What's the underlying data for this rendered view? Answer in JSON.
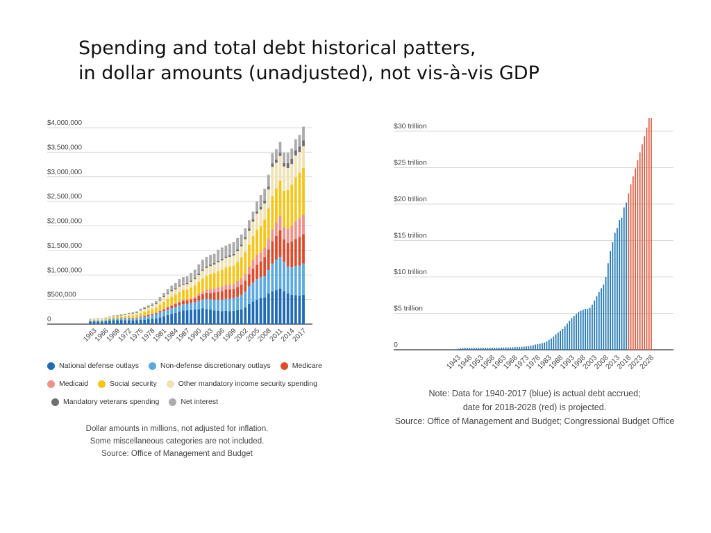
{
  "slide": {
    "title_line1": "Spending and total debt historical patters,",
    "title_line2": "in dollar amounts (unadjusted), not vis-à-vis GDP"
  },
  "chart_data": [
    {
      "type": "bar",
      "stacked": true,
      "years": [
        1962,
        1963,
        1964,
        1965,
        1966,
        1967,
        1968,
        1969,
        1970,
        1971,
        1972,
        1973,
        1974,
        1975,
        1976,
        1977,
        1978,
        1979,
        1980,
        1981,
        1982,
        1983,
        1984,
        1985,
        1986,
        1987,
        1988,
        1989,
        1990,
        1991,
        1992,
        1993,
        1994,
        1995,
        1996,
        1997,
        1998,
        1999,
        2000,
        2001,
        2002,
        2003,
        2004,
        2005,
        2006,
        2007,
        2008,
        2009,
        2010,
        2011,
        2012,
        2013,
        2014,
        2015,
        2016,
        2017
      ],
      "x_tick_labels": [
        "1963",
        "1966",
        "1969",
        "1972",
        "1975",
        "1978",
        "1981",
        "1984",
        "1987",
        "1990",
        "1993",
        "1996",
        "1999",
        "2002",
        "2005",
        "2008",
        "2011",
        "2014",
        "2017"
      ],
      "y_tick_labels": [
        "$4,000,000",
        "$3,500,000",
        "$3,000,000",
        "$2,500,000",
        "$2,000,000",
        "$1,500,000",
        "$1,000,000",
        "$500,000",
        "0"
      ],
      "ylim": [
        0,
        4000000
      ],
      "grid": true,
      "legend_position": "bottom",
      "totals": [
        106000,
        111000,
        118000,
        118000,
        134000,
        157000,
        178000,
        183000,
        196000,
        210000,
        231000,
        246000,
        269000,
        332000,
        372000,
        409000,
        459000,
        504000,
        591000,
        678000,
        746000,
        808000,
        852000,
        946000,
        990000,
        1004000,
        1065000,
        1144000,
        1253000,
        1324000,
        1382000,
        1410000,
        1462000,
        1516000,
        1561000,
        1601000,
        1652000,
        1702000,
        1789000,
        1863000,
        2011000,
        2160000,
        2293000,
        2472000,
        2655000,
        2729000,
        2983000,
        3518000,
        3457000,
        3603000,
        3527000,
        3455000,
        3506000,
        3692000,
        3853000,
        3982000
      ],
      "series": [
        {
          "name": "National defense outlays",
          "color": "#1f6bb5",
          "share": [
            0.5,
            0.49,
            0.47,
            0.43,
            0.44,
            0.46,
            0.46,
            0.44,
            0.42,
            0.38,
            0.35,
            0.31,
            0.29,
            0.26,
            0.24,
            0.24,
            0.23,
            0.23,
            0.23,
            0.23,
            0.25,
            0.26,
            0.27,
            0.27,
            0.28,
            0.28,
            0.27,
            0.26,
            0.24,
            0.24,
            0.22,
            0.21,
            0.19,
            0.18,
            0.17,
            0.17,
            0.16,
            0.16,
            0.16,
            0.16,
            0.17,
            0.19,
            0.2,
            0.2,
            0.2,
            0.2,
            0.21,
            0.19,
            0.2,
            0.2,
            0.19,
            0.18,
            0.17,
            0.16,
            0.15,
            0.15
          ]
        },
        {
          "name": "Non-defense discretionary outlays",
          "color": "#5aa9e0",
          "share": [
            0.14,
            0.14,
            0.15,
            0.16,
            0.16,
            0.16,
            0.16,
            0.16,
            0.16,
            0.16,
            0.16,
            0.16,
            0.16,
            0.16,
            0.16,
            0.17,
            0.17,
            0.17,
            0.17,
            0.16,
            0.15,
            0.14,
            0.14,
            0.13,
            0.13,
            0.13,
            0.13,
            0.13,
            0.14,
            0.14,
            0.15,
            0.15,
            0.15,
            0.15,
            0.15,
            0.15,
            0.15,
            0.15,
            0.15,
            0.16,
            0.16,
            0.17,
            0.17,
            0.17,
            0.16,
            0.16,
            0.16,
            0.16,
            0.18,
            0.18,
            0.17,
            0.16,
            0.16,
            0.16,
            0.16,
            0.16
          ]
        },
        {
          "name": "Medicare",
          "color": "#dd4b2a",
          "share": [
            0.0,
            0.0,
            0.0,
            0.0,
            0.01,
            0.02,
            0.03,
            0.03,
            0.04,
            0.04,
            0.04,
            0.04,
            0.04,
            0.04,
            0.05,
            0.05,
            0.05,
            0.05,
            0.05,
            0.05,
            0.06,
            0.06,
            0.07,
            0.07,
            0.07,
            0.07,
            0.07,
            0.07,
            0.08,
            0.08,
            0.09,
            0.09,
            0.1,
            0.1,
            0.11,
            0.12,
            0.12,
            0.11,
            0.11,
            0.11,
            0.11,
            0.11,
            0.12,
            0.12,
            0.12,
            0.14,
            0.14,
            0.13,
            0.14,
            0.15,
            0.13,
            0.14,
            0.15,
            0.15,
            0.15,
            0.15
          ]
        },
        {
          "name": "Medicaid",
          "color": "#f0908a",
          "share": [
            0.0,
            0.0,
            0.0,
            0.0,
            0.01,
            0.01,
            0.02,
            0.02,
            0.02,
            0.02,
            0.02,
            0.02,
            0.02,
            0.02,
            0.02,
            0.02,
            0.02,
            0.02,
            0.02,
            0.02,
            0.02,
            0.02,
            0.02,
            0.02,
            0.02,
            0.02,
            0.02,
            0.03,
            0.03,
            0.04,
            0.05,
            0.06,
            0.06,
            0.06,
            0.06,
            0.06,
            0.06,
            0.06,
            0.07,
            0.07,
            0.07,
            0.07,
            0.08,
            0.08,
            0.07,
            0.07,
            0.07,
            0.07,
            0.08,
            0.08,
            0.07,
            0.08,
            0.09,
            0.1,
            0.1,
            0.1
          ]
        },
        {
          "name": "Social security",
          "color": "#f5c518",
          "share": [
            0.14,
            0.15,
            0.15,
            0.16,
            0.16,
            0.15,
            0.15,
            0.16,
            0.16,
            0.17,
            0.17,
            0.19,
            0.2,
            0.19,
            0.2,
            0.2,
            0.2,
            0.2,
            0.2,
            0.21,
            0.21,
            0.21,
            0.21,
            0.2,
            0.2,
            0.2,
            0.21,
            0.2,
            0.2,
            0.2,
            0.2,
            0.21,
            0.21,
            0.22,
            0.22,
            0.22,
            0.22,
            0.22,
            0.22,
            0.23,
            0.22,
            0.21,
            0.21,
            0.21,
            0.2,
            0.21,
            0.21,
            0.19,
            0.2,
            0.2,
            0.21,
            0.23,
            0.24,
            0.24,
            0.24,
            0.24
          ]
        },
        {
          "name": "Other mandatory income security spending",
          "color": "#efe2b3",
          "share": [
            0.1,
            0.1,
            0.1,
            0.1,
            0.1,
            0.09,
            0.09,
            0.09,
            0.1,
            0.13,
            0.15,
            0.14,
            0.14,
            0.17,
            0.17,
            0.15,
            0.14,
            0.14,
            0.14,
            0.14,
            0.13,
            0.14,
            0.12,
            0.12,
            0.11,
            0.11,
            0.11,
            0.11,
            0.11,
            0.12,
            0.12,
            0.12,
            0.12,
            0.12,
            0.12,
            0.12,
            0.12,
            0.12,
            0.12,
            0.12,
            0.13,
            0.13,
            0.13,
            0.13,
            0.13,
            0.12,
            0.13,
            0.17,
            0.15,
            0.14,
            0.14,
            0.13,
            0.12,
            0.12,
            0.11,
            0.11
          ]
        },
        {
          "name": "Mandatory veterans spending",
          "color": "#6f6f6f",
          "share": [
            0.04,
            0.04,
            0.04,
            0.04,
            0.04,
            0.03,
            0.03,
            0.03,
            0.04,
            0.04,
            0.04,
            0.04,
            0.04,
            0.04,
            0.04,
            0.04,
            0.03,
            0.03,
            0.03,
            0.03,
            0.03,
            0.03,
            0.03,
            0.02,
            0.02,
            0.02,
            0.02,
            0.02,
            0.02,
            0.02,
            0.02,
            0.02,
            0.02,
            0.02,
            0.02,
            0.02,
            0.02,
            0.02,
            0.02,
            0.02,
            0.02,
            0.02,
            0.02,
            0.02,
            0.02,
            0.02,
            0.02,
            0.02,
            0.02,
            0.02,
            0.02,
            0.03,
            0.03,
            0.03,
            0.03,
            0.03
          ]
        },
        {
          "name": "Net interest",
          "color": "#ababab",
          "share": [
            0.08,
            0.08,
            0.09,
            0.09,
            0.08,
            0.08,
            0.07,
            0.08,
            0.07,
            0.07,
            0.07,
            0.08,
            0.08,
            0.07,
            0.07,
            0.08,
            0.08,
            0.09,
            0.09,
            0.1,
            0.11,
            0.11,
            0.12,
            0.14,
            0.14,
            0.14,
            0.15,
            0.15,
            0.15,
            0.15,
            0.14,
            0.14,
            0.13,
            0.15,
            0.15,
            0.14,
            0.14,
            0.14,
            0.13,
            0.11,
            0.09,
            0.08,
            0.07,
            0.08,
            0.09,
            0.09,
            0.08,
            0.06,
            0.06,
            0.06,
            0.06,
            0.06,
            0.06,
            0.06,
            0.06,
            0.07
          ]
        }
      ],
      "notes": [
        "Dollar amounts in millions,  not adjusted for inflation.",
        "Some miscellaneous categories are not included.",
        "Source: Office of Management and Budget"
      ]
    },
    {
      "type": "bar",
      "years": [
        1940,
        1941,
        1942,
        1943,
        1944,
        1945,
        1946,
        1947,
        1948,
        1949,
        1950,
        1951,
        1952,
        1953,
        1954,
        1955,
        1956,
        1957,
        1958,
        1959,
        1960,
        1961,
        1962,
        1963,
        1964,
        1965,
        1966,
        1967,
        1968,
        1969,
        1970,
        1971,
        1972,
        1973,
        1974,
        1975,
        1976,
        1977,
        1978,
        1979,
        1980,
        1981,
        1982,
        1983,
        1984,
        1985,
        1986,
        1987,
        1988,
        1989,
        1990,
        1991,
        1992,
        1993,
        1994,
        1995,
        1996,
        1997,
        1998,
        1999,
        2000,
        2001,
        2002,
        2003,
        2004,
        2005,
        2006,
        2007,
        2008,
        2009,
        2010,
        2011,
        2012,
        2013,
        2014,
        2015,
        2016,
        2017,
        2018,
        2019,
        2020,
        2021,
        2022,
        2023,
        2024,
        2025,
        2026,
        2027,
        2028
      ],
      "values_trillions": [
        0.05,
        0.06,
        0.08,
        0.14,
        0.2,
        0.26,
        0.27,
        0.26,
        0.25,
        0.25,
        0.26,
        0.26,
        0.26,
        0.27,
        0.27,
        0.27,
        0.27,
        0.27,
        0.28,
        0.29,
        0.29,
        0.29,
        0.3,
        0.31,
        0.32,
        0.32,
        0.33,
        0.34,
        0.37,
        0.37,
        0.38,
        0.41,
        0.44,
        0.47,
        0.48,
        0.54,
        0.63,
        0.71,
        0.78,
        0.83,
        0.91,
        0.99,
        1.14,
        1.37,
        1.56,
        1.82,
        2.12,
        2.35,
        2.6,
        2.87,
        3.21,
        3.6,
        4.0,
        4.35,
        4.64,
        4.92,
        5.18,
        5.37,
        5.48,
        5.61,
        5.63,
        5.77,
        6.2,
        6.76,
        7.35,
        7.91,
        8.45,
        8.95,
        9.99,
        11.88,
        13.53,
        14.76,
        16.05,
        16.72,
        17.79,
        18.12,
        19.54,
        20.21,
        21.46,
        22.72,
        23.8,
        24.9,
        26.0,
        27.1,
        28.2,
        29.3,
        30.5,
        31.8,
        33.0
      ],
      "projected_from": 2018,
      "actual_color": "#1f77b4",
      "projected_color": "#d95f43",
      "x_tick_labels": [
        "1943",
        "1948",
        "1953",
        "1958",
        "1963",
        "1968",
        "1973",
        "1978",
        "1983",
        "1988",
        "1993",
        "1998",
        "2003",
        "2008",
        "2013",
        "2018",
        "2023",
        "2028"
      ],
      "y_tick_labels": [
        "$30 trillion",
        "$25 trillion",
        "$20 trillion",
        "$15 trillion",
        "$10 trillion",
        "$5 trillion",
        "0"
      ],
      "ylim": [
        0,
        30
      ],
      "grid": true,
      "notes": [
        "Note: Data for 1940-2017 (blue) is actual debt accrued;",
        "date for 2018-2028 (red) is projected.",
        "Source: Office of Management and Budget; Congressional Budget Office"
      ]
    }
  ]
}
